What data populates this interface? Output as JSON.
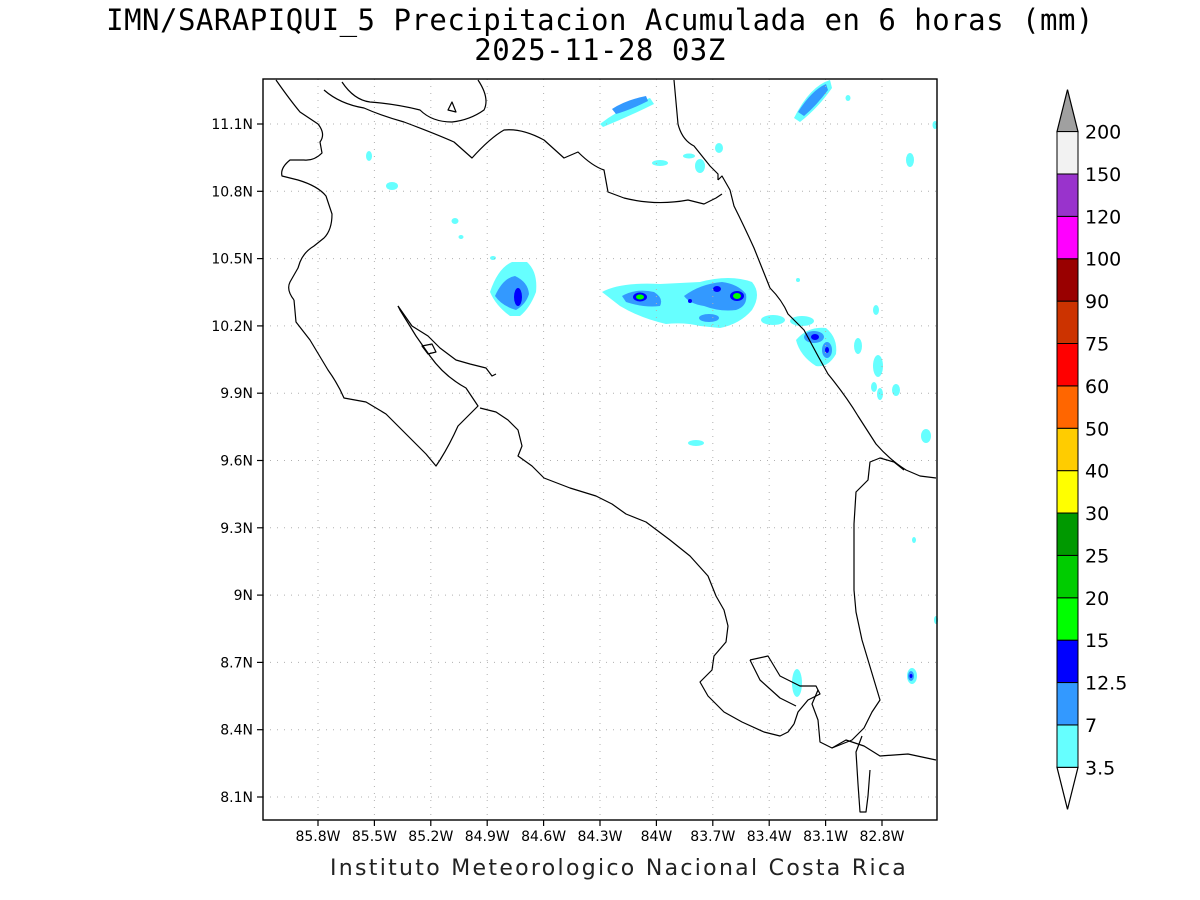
{
  "title": {
    "line1": "IMN/SARAPIQUI_5 Precipitacion Acumulada en 6 horas (mm)",
    "line2": "2025-11-28 03Z"
  },
  "footer": "Instituto Meteorologico Nacional Costa Rica",
  "map": {
    "lat_ticks": [
      "11.1N",
      "10.8N",
      "10.5N",
      "10.2N",
      "9.9N",
      "9.6N",
      "9.3N",
      "9N",
      "8.7N",
      "8.4N",
      "8.1N"
    ],
    "lat_values": [
      11.1,
      10.8,
      10.5,
      10.2,
      9.9,
      9.6,
      9.3,
      9.0,
      8.7,
      8.4,
      8.1
    ],
    "lon_ticks": [
      "85.8W",
      "85.5W",
      "85.2W",
      "84.9W",
      "84.6W",
      "84.3W",
      "84W",
      "83.7W",
      "83.4W",
      "83.1W",
      "82.8W"
    ],
    "lon_values": [
      -85.8,
      -85.5,
      -85.2,
      -84.9,
      -84.6,
      -84.3,
      -84.0,
      -83.7,
      -83.4,
      -83.1,
      -82.8
    ],
    "grid": true,
    "coastline_color": "#000000"
  },
  "colorbar": {
    "labels": [
      "3.5",
      "7",
      "12.5",
      "15",
      "20",
      "25",
      "30",
      "40",
      "50",
      "60",
      "75",
      "90",
      "100",
      "120",
      "150",
      "200"
    ],
    "colors": [
      "#66ffff",
      "#3399ff",
      "#0000ff",
      "#00ff00",
      "#00cc00",
      "#009900",
      "#ffff00",
      "#ffcc00",
      "#ff6600",
      "#ff0000",
      "#cc3300",
      "#990000",
      "#ff00ff",
      "#9933cc",
      "#f2f2f2",
      "#a0a0a0"
    ],
    "under_color": "#ffffff",
    "over_color": "#a0a0a0"
  },
  "precip_palette": {
    "c3_5": "#66ffff",
    "c7": "#3399ff",
    "c12_5": "#0000ff",
    "c15": "#00ff00"
  }
}
